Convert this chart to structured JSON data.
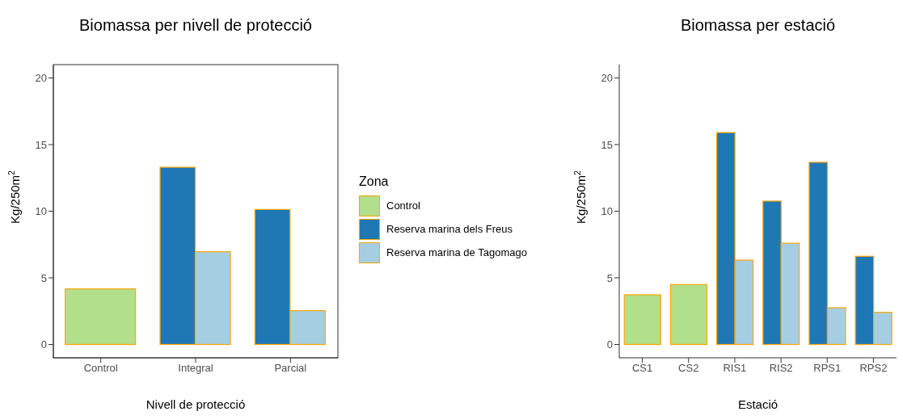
{
  "chart_data": [
    {
      "type": "bar",
      "title": "Biomassa per nivell de protecció",
      "xlabel": "Nivell de protecció",
      "ylabel": "Kg/250m$^{2}$",
      "legend_title": "Zona",
      "categories": [
        "Control",
        "Integral",
        "Parcial"
      ],
      "series": [
        {
          "name": "Control",
          "color": "#b2df8a",
          "values": [
            4.17,
            null,
            null
          ]
        },
        {
          "name": "Reserva marina dels Freus",
          "color": "#1f78b4",
          "values": [
            null,
            13.3,
            10.13
          ]
        },
        {
          "name": "Reserva marina de Tagomago",
          "color": "#a6cee3",
          "values": [
            null,
            6.96,
            2.54
          ]
        }
      ],
      "ylim": [
        -1,
        21
      ],
      "yticks": [
        0,
        5,
        10,
        15,
        20
      ],
      "grid": false,
      "legend": "right"
    },
    {
      "type": "bar",
      "title": "Biomassa per estació",
      "xlabel": "Estació",
      "ylabel": "Kg/250m$^{2}$",
      "categories": [
        "CS1",
        "CS2",
        "RIS1",
        "RIS2",
        "RPS1",
        "RPS2"
      ],
      "series": [
        {
          "color": "#b2df8a",
          "values": [
            3.73,
            4.5,
            null,
            null,
            null,
            null
          ]
        },
        {
          "color": "#1f78b4",
          "values": [
            null,
            null,
            15.9,
            10.76,
            13.67,
            6.62
          ]
        },
        {
          "color": "#a6cee3",
          "values": [
            null,
            null,
            6.33,
            7.6,
            2.76,
            2.41
          ]
        }
      ],
      "ylim": [
        -1,
        21
      ],
      "yticks": [
        0,
        5,
        10,
        15,
        20
      ],
      "grid": false,
      "legend": false
    }
  ]
}
